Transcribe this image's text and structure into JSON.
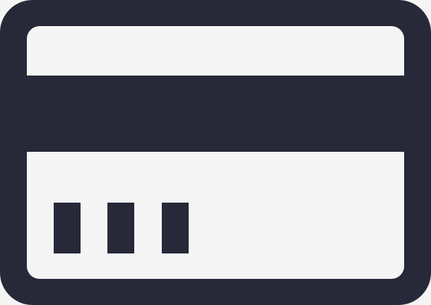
{
  "icon": {
    "name": "credit-card-icon",
    "colors": {
      "stroke": "#272838",
      "fill": "#f5f5f6"
    },
    "pin_blocks": 3
  }
}
